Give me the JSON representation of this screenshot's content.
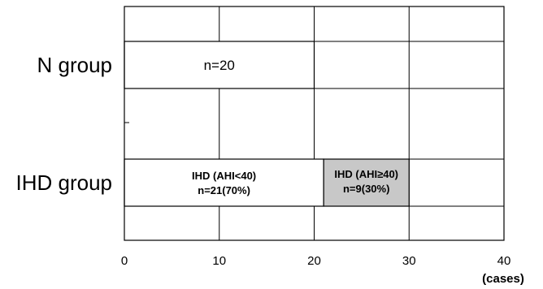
{
  "chart_data": {
    "type": "bar",
    "orientation": "horizontal",
    "stacked": true,
    "categories": [
      "N group",
      "IHD group"
    ],
    "series": [
      {
        "values": [
          20,
          21
        ],
        "color": "#ffffff",
        "labels": [
          [
            "n=20"
          ],
          [
            "IHD (AHI<40)",
            "n=21(70%)"
          ]
        ]
      },
      {
        "values": [
          0,
          9
        ],
        "color": "#c8c8c8",
        "labels": [
          [],
          [
            "IHD (AHI≥40)",
            "n=9(30%)"
          ]
        ]
      }
    ],
    "x_ticks": [
      0,
      10,
      20,
      30,
      40
    ],
    "xlim": [
      0,
      40
    ],
    "xunit": "(cases)",
    "grid": true
  }
}
